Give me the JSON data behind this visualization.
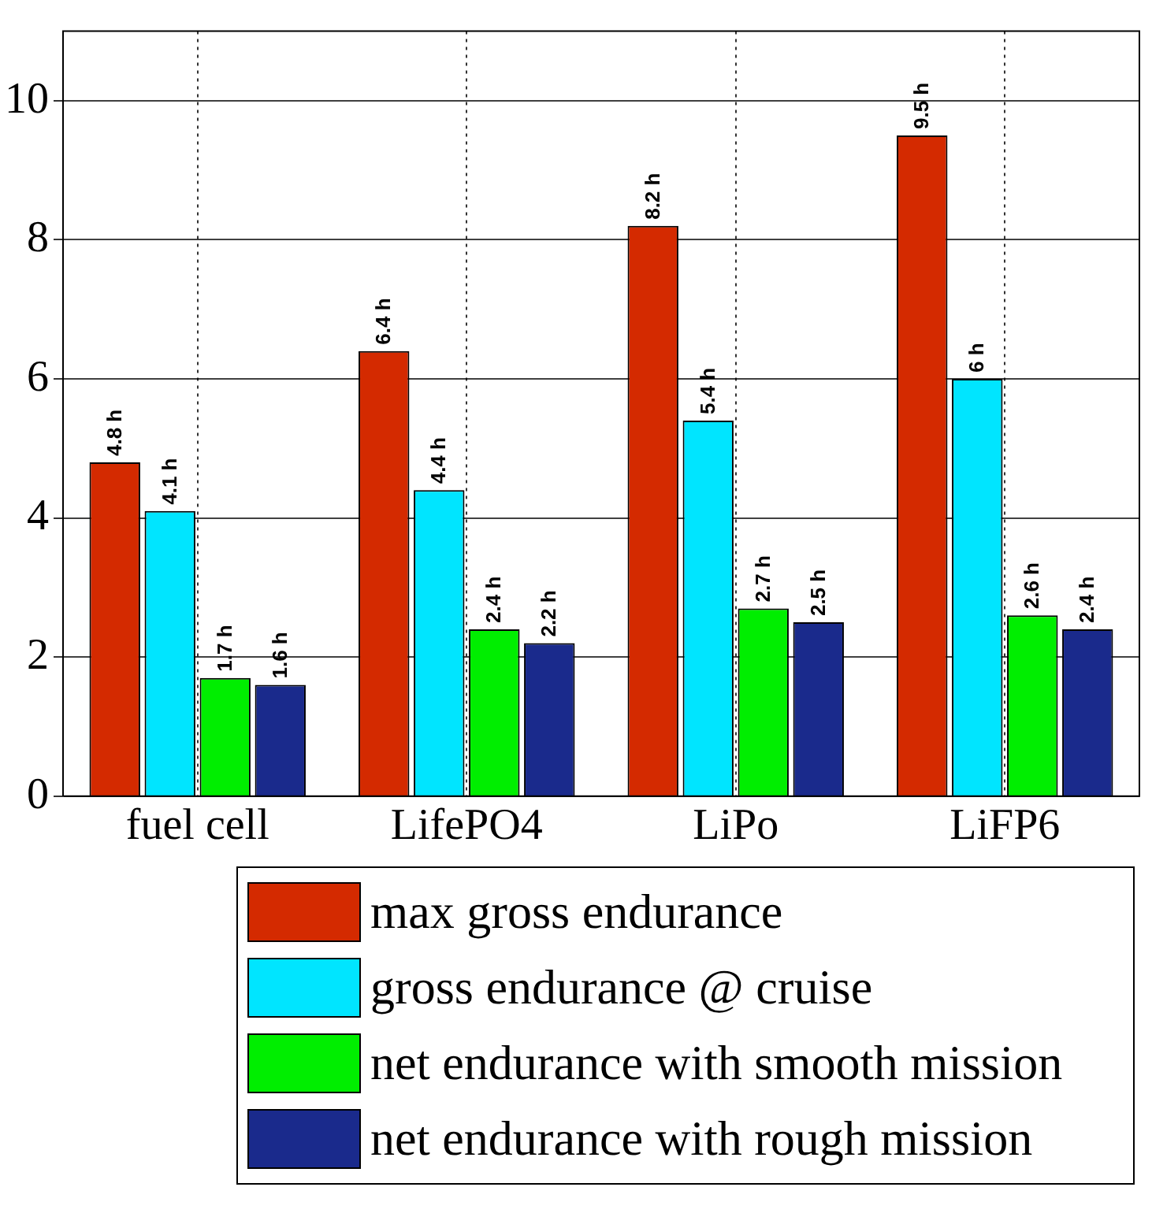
{
  "chart_data": {
    "type": "bar",
    "categories": [
      "fuel cell",
      "LifePO4",
      "LiPo",
      "LiFP6"
    ],
    "series": [
      {
        "name": "max gross endurance",
        "color": "#d42a00",
        "values": [
          4.8,
          6.4,
          8.2,
          9.5
        ],
        "value_labels": [
          "4.8 h",
          "6.4 h",
          "8.2 h",
          "9.5 h"
        ]
      },
      {
        "name": "gross endurance @ cruise",
        "color": "#00e5ff",
        "values": [
          4.1,
          4.4,
          5.4,
          6
        ],
        "value_labels": [
          "4.1 h",
          "4.4 h",
          "5.4 h",
          "6 h"
        ]
      },
      {
        "name": "net endurance with smooth mission",
        "color": "#00ee00",
        "values": [
          1.7,
          2.4,
          2.7,
          2.6
        ],
        "value_labels": [
          "1.7 h",
          "2.4 h",
          "2.7 h",
          "2.6 h"
        ]
      },
      {
        "name": "net endurance with rough mission",
        "color": "#1a2a8c",
        "values": [
          1.6,
          2.2,
          2.5,
          2.4
        ],
        "value_labels": [
          "1.6 h",
          "2.2 h",
          "2.5 h",
          "2.4 h"
        ]
      }
    ],
    "ylim": [
      0,
      11
    ],
    "yticks": [
      0,
      2,
      4,
      6,
      8,
      10
    ],
    "grid": true,
    "legend": "bottom"
  }
}
